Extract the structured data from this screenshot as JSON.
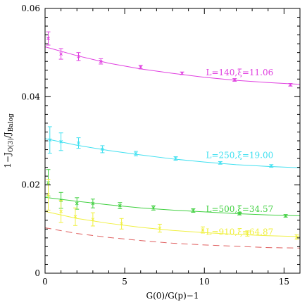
{
  "chart_data": {
    "type": "scatter",
    "xlabel": "G(0)/G(p)−1",
    "ylabel": {
      "prefix": "1−J",
      "sub1": "O(3)",
      "mid": "/J",
      "sub2": "Balog"
    },
    "xlim": [
      0,
      16
    ],
    "ylim": [
      0,
      0.06
    ],
    "x_ticks": [
      0,
      5,
      10,
      15
    ],
    "x_tick_labels": [
      "0",
      "5",
      "10",
      "15"
    ],
    "y_ticks": [
      0,
      0.02,
      0.04,
      0.06
    ],
    "y_tick_labels": [
      "0",
      "0.02",
      "0.04",
      "0.06"
    ],
    "grid": false,
    "legend": "inline labels on the right",
    "series": [
      {
        "name": "L=140,ξ=11.06",
        "color": "#e040e0",
        "points": [
          {
            "x": 0.2,
            "y": 0.0532,
            "err": 0.0015
          },
          {
            "x": 1.0,
            "y": 0.0497,
            "err": 0.0012
          },
          {
            "x": 2.1,
            "y": 0.0491,
            "err": 0.0009
          },
          {
            "x": 3.5,
            "y": 0.048,
            "err": 0.0006
          },
          {
            "x": 6.0,
            "y": 0.0467,
            "err": 0.0004
          },
          {
            "x": 8.6,
            "y": 0.0453,
            "err": 0.0003
          },
          {
            "x": 11.9,
            "y": 0.0438,
            "err": 0.0003
          },
          {
            "x": 15.4,
            "y": 0.0427,
            "err": 0.0003
          }
        ],
        "fit": [
          [
            0,
            0.0513
          ],
          [
            2,
            0.0493
          ],
          [
            4,
            0.0476
          ],
          [
            6,
            0.0463
          ],
          [
            8,
            0.0453
          ],
          [
            10,
            0.0444
          ],
          [
            12,
            0.0437
          ],
          [
            14,
            0.0432
          ],
          [
            16,
            0.0428
          ]
        ],
        "fit_dashed": false,
        "label_x": 10.1,
        "label_y": 0.0455
      },
      {
        "name": "L=250,ξ=19.00",
        "color": "#40e0f0",
        "points": [
          {
            "x": 0.3,
            "y": 0.0302,
            "err": 0.003
          },
          {
            "x": 1.0,
            "y": 0.0298,
            "err": 0.002
          },
          {
            "x": 2.1,
            "y": 0.0295,
            "err": 0.0012
          },
          {
            "x": 3.6,
            "y": 0.0281,
            "err": 0.0008
          },
          {
            "x": 5.7,
            "y": 0.0271,
            "err": 0.0005
          },
          {
            "x": 8.2,
            "y": 0.026,
            "err": 0.0004
          },
          {
            "x": 11.0,
            "y": 0.025,
            "err": 0.0003
          },
          {
            "x": 14.2,
            "y": 0.0243,
            "err": 0.0003
          }
        ],
        "fit": [
          [
            0,
            0.0305
          ],
          [
            2,
            0.029
          ],
          [
            4,
            0.0278
          ],
          [
            6,
            0.0268
          ],
          [
            8,
            0.0259
          ],
          [
            10,
            0.0252
          ],
          [
            12,
            0.0246
          ],
          [
            14,
            0.0242
          ],
          [
            16,
            0.0239
          ]
        ],
        "fit_dashed": false,
        "label_x": 10.1,
        "label_y": 0.0267
      },
      {
        "name": "L=500,ξ=34.57",
        "color": "#40d040",
        "points": [
          {
            "x": 0.2,
            "y": 0.0205,
            "err": 0.003
          },
          {
            "x": 1.0,
            "y": 0.0165,
            "err": 0.0018
          },
          {
            "x": 2.0,
            "y": 0.0158,
            "err": 0.0013
          },
          {
            "x": 3.0,
            "y": 0.0158,
            "err": 0.001
          },
          {
            "x": 4.7,
            "y": 0.0153,
            "err": 0.0007
          },
          {
            "x": 6.8,
            "y": 0.0148,
            "err": 0.0005
          },
          {
            "x": 9.3,
            "y": 0.0142,
            "err": 0.0004
          },
          {
            "x": 12.2,
            "y": 0.0135,
            "err": 0.0003
          },
          {
            "x": 15.1,
            "y": 0.013,
            "err": 0.0003
          }
        ],
        "fit": [
          [
            0,
            0.0172
          ],
          [
            2,
            0.0163
          ],
          [
            4,
            0.0155
          ],
          [
            6,
            0.0148
          ],
          [
            8,
            0.0143
          ],
          [
            10,
            0.0139
          ],
          [
            12,
            0.0135
          ],
          [
            14,
            0.0132
          ],
          [
            16,
            0.013
          ]
        ],
        "fit_dashed": false,
        "label_x": 10.1,
        "label_y": 0.0145
      },
      {
        "name": "L=910,ξ=64.87",
        "color": "#f0f040",
        "points": [
          {
            "x": 0.2,
            "y": 0.0178,
            "err": 0.0035
          },
          {
            "x": 1.0,
            "y": 0.014,
            "err": 0.0025
          },
          {
            "x": 1.9,
            "y": 0.0128,
            "err": 0.002
          },
          {
            "x": 3.0,
            "y": 0.0122,
            "err": 0.0015
          },
          {
            "x": 4.8,
            "y": 0.0112,
            "err": 0.0012
          },
          {
            "x": 7.2,
            "y": 0.0102,
            "err": 0.0009
          },
          {
            "x": 9.9,
            "y": 0.0098,
            "err": 0.0007
          },
          {
            "x": 12.7,
            "y": 0.009,
            "err": 0.0006
          },
          {
            "x": 15.8,
            "y": 0.0082,
            "err": 0.0005
          }
        ],
        "fit": [
          [
            0,
            0.014
          ],
          [
            2,
            0.0124
          ],
          [
            4,
            0.0113
          ],
          [
            6,
            0.0104
          ],
          [
            8,
            0.0097
          ],
          [
            10,
            0.0092
          ],
          [
            12,
            0.0088
          ],
          [
            14,
            0.0085
          ],
          [
            16,
            0.0083
          ]
        ],
        "fit_dashed": false,
        "label_x": 10.1,
        "label_y": 0.0093
      },
      {
        "color": "#e06060",
        "points": [],
        "fit": [
          [
            0,
            0.0103
          ],
          [
            2,
            0.009
          ],
          [
            4,
            0.0081
          ],
          [
            6,
            0.0074
          ],
          [
            8,
            0.0068
          ],
          [
            10,
            0.0064
          ],
          [
            12,
            0.0061
          ],
          [
            14,
            0.0058
          ],
          [
            16,
            0.0057
          ]
        ],
        "fit_dashed": true
      }
    ]
  }
}
